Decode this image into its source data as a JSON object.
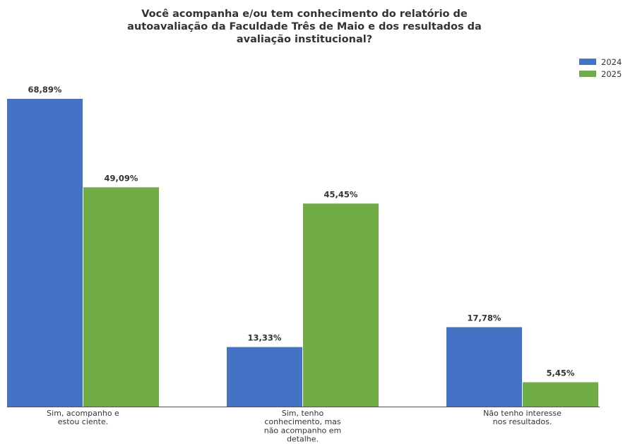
{
  "chart_data": {
    "type": "bar",
    "title_lines": [
      "Você acompanha e/ou tem conhecimento do relatório de",
      "autoavaliação da Faculdade Três de Maio e dos resultados da",
      "avaliação institucional?"
    ],
    "categories": [
      [
        "Sim, acompanho e",
        "estou ciente."
      ],
      [
        "Sim, tenho",
        "conhecimento, mas",
        "não acompanho em",
        "detalhe."
      ],
      [
        "Não tenho interesse",
        "nos resultados."
      ]
    ],
    "series": [
      {
        "name": "2024",
        "color": "#4472c4",
        "values": [
          68.89,
          13.33,
          17.78
        ],
        "labels": [
          "68,89%",
          "13,33%",
          "17,78%"
        ]
      },
      {
        "name": "2025",
        "color": "#70ad47",
        "values": [
          49.09,
          45.45,
          5.45
        ],
        "labels": [
          "49,09%",
          "45,45%",
          "5,45%"
        ]
      }
    ],
    "ylim": [
      0,
      68.89
    ],
    "grid": false,
    "legend": "top-right"
  }
}
